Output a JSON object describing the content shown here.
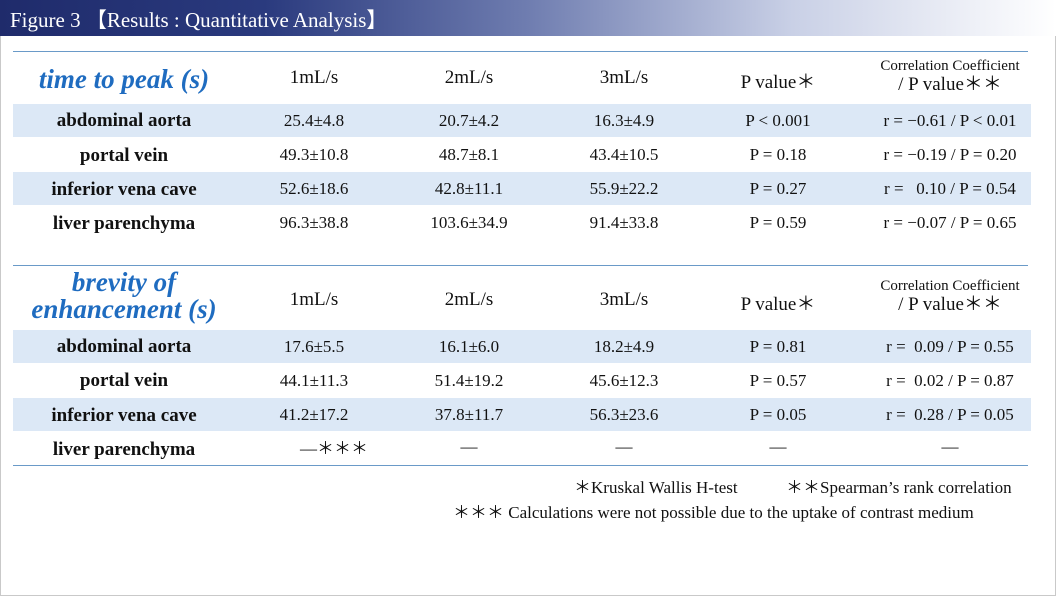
{
  "figure_title": "Figure 3 【Results : Quantitative Analysis】",
  "columns": [
    "1mL/s",
    "2mL/s",
    "3mL/s",
    "P value＊",
    "Correlation Coefficient",
    "/ P value＊＊"
  ],
  "tables": [
    {
      "title_lines": [
        "time to peak (s)"
      ],
      "rows": [
        {
          "label": "abdominal aorta",
          "v1": "25.4±4.8",
          "v2": "20.7±4.2",
          "v3": "16.3±4.9",
          "p": "P < 0.001",
          "r": "r = −0.61 / P < 0.01"
        },
        {
          "label": "portal vein",
          "v1": "49.3±10.8",
          "v2": "48.7±8.1",
          "v3": "43.4±10.5",
          "p": "P = 0.18",
          "r": "r = −0.19 / P = 0.20"
        },
        {
          "label": "inferior vena cave",
          "v1": "52.6±18.6",
          "v2": "42.8±11.1",
          "v3": "55.9±22.2",
          "p": "P = 0.27",
          "r": "r =   0.10 / P = 0.54"
        },
        {
          "label": "liver parenchyma",
          "v1": "96.3±38.8",
          "v2": "103.6±34.9",
          "v3": "91.4±33.8",
          "p": "P = 0.59",
          "r": "r = −0.07 / P = 0.65"
        }
      ]
    },
    {
      "title_lines": [
        "brevity of",
        "enhancement (s)"
      ],
      "rows": [
        {
          "label": "abdominal aorta",
          "v1": "17.6±5.5",
          "v2": "16.1±6.0",
          "v3": "18.2±4.9",
          "p": "P = 0.81",
          "r": "r =  0.09 / P = 0.55"
        },
        {
          "label": "portal vein",
          "v1": "44.1±11.3",
          "v2": "51.4±19.2",
          "v3": "45.6±12.3",
          "p": "P = 0.57",
          "r": "r =  0.02 / P = 0.87"
        },
        {
          "label": "inferior vena cave",
          "v1": "41.2±17.2",
          "v2": "37.8±11.7",
          "v3": "56.3±23.6",
          "p": "P = 0.05",
          "r": "r =  0.28 / P = 0.05"
        },
        {
          "label": "liver parenchyma",
          "v1": "—＊＊＊",
          "v2": "—",
          "v3": "—",
          "p": "—",
          "r": "—"
        }
      ]
    }
  ],
  "footnotes": {
    "kruskal": "＊Kruskal Wallis H-test",
    "spearman": "＊＊Spearman’s rank correlation",
    "note": "＊＊＊ Calculations were not possible due to the uptake of contrast medium"
  }
}
